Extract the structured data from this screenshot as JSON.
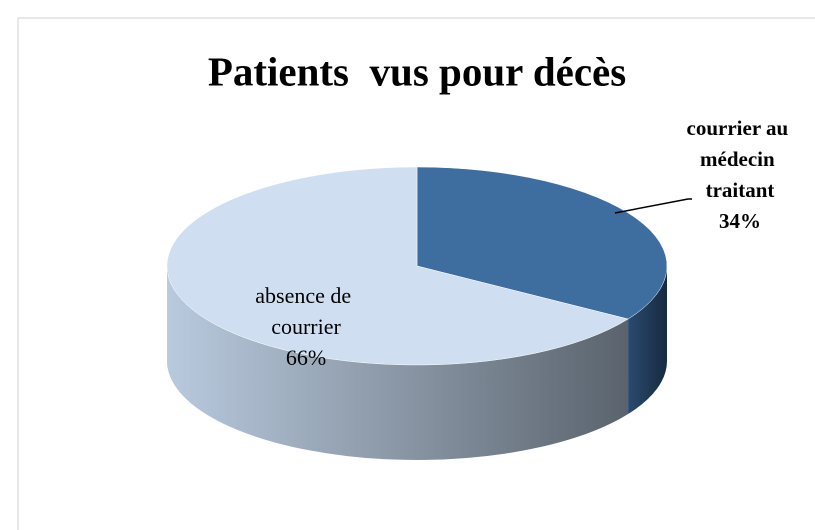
{
  "chart_data": {
    "type": "pie",
    "title": "Patients  vus pour décès",
    "categories": [
      "courrier au médecin traitant",
      "absence de courrier"
    ],
    "values": [
      34,
      66
    ],
    "value_labels": [
      "34%",
      "66%"
    ],
    "colors": [
      "#3e6d9f",
      "#cfdef0"
    ]
  }
}
